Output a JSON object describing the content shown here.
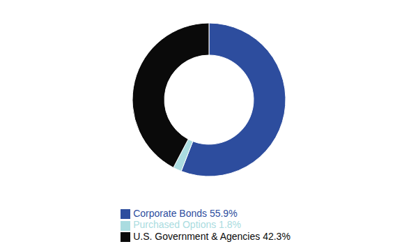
{
  "chart_data": {
    "type": "donut",
    "categories": [
      "Corporate Bonds 55.9%",
      "Purchased Options 1.8%",
      "U.S. Government & Agencies 42.3%"
    ],
    "values": [
      55.9,
      1.8,
      42.3
    ],
    "colors": [
      "#2d4d9e",
      "#aadce0",
      "#0a0a0a"
    ],
    "legend": "bottom"
  }
}
